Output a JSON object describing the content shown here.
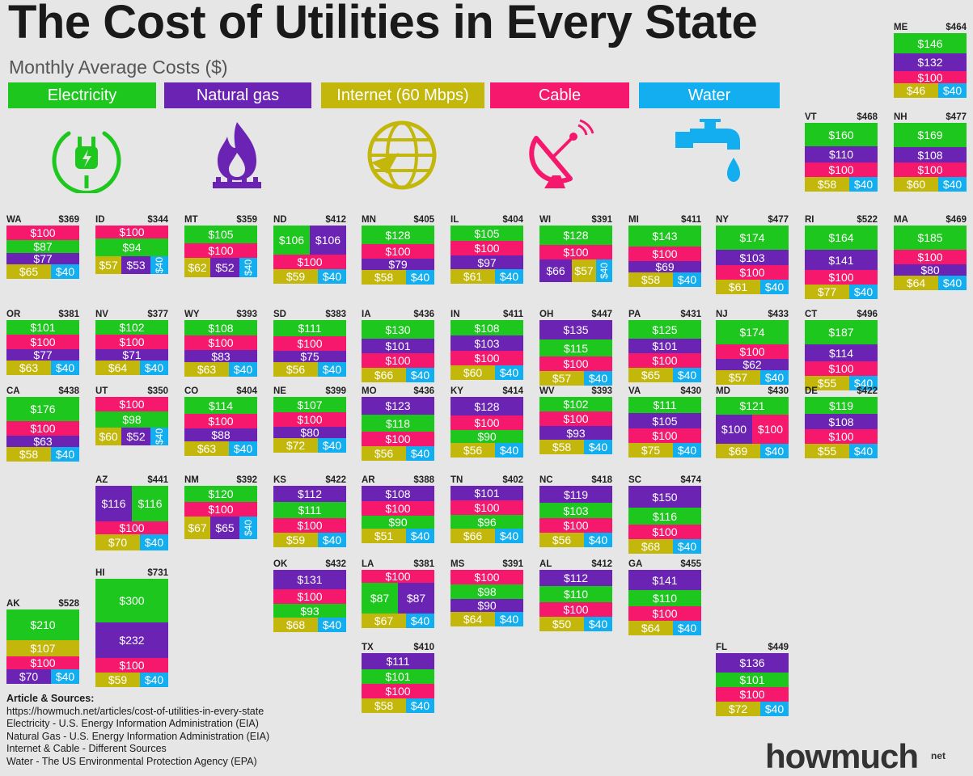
{
  "title": "The Cost of Utilities in Every State",
  "subtitle": "Monthly Average Costs  ($)",
  "colors": {
    "electricity": "#1ec71e",
    "gas": "#6a23b2",
    "internet": "#c4b70c",
    "cable": "#f5186c",
    "water": "#12aef0"
  },
  "legend": [
    {
      "key": "electricity",
      "label": "Electricity",
      "icon": "plug-icon"
    },
    {
      "key": "gas",
      "label": "Natural gas",
      "icon": "flame-icon"
    },
    {
      "key": "internet",
      "label": "Internet (60 Mbps)",
      "icon": "globe-icon"
    },
    {
      "key": "cable",
      "label": "Cable",
      "icon": "satellite-dish-icon"
    },
    {
      "key": "water",
      "label": "Water",
      "icon": "faucet-icon"
    }
  ],
  "chart_data": {
    "type": "bar",
    "units": "$",
    "states": [
      {
        "state": "ME",
        "total": "$464",
        "values": {
          "electricity": 146,
          "gas": 132,
          "cable": 100,
          "internet": 46,
          "water": 40
        }
      },
      {
        "state": "VT",
        "total": "$468",
        "values": {
          "electricity": 160,
          "gas": 110,
          "cable": 100,
          "internet": 58,
          "water": 40
        }
      },
      {
        "state": "NH",
        "total": "$477",
        "values": {
          "electricity": 169,
          "gas": 108,
          "cable": 100,
          "internet": 60,
          "water": 40
        }
      },
      {
        "state": "WA",
        "total": "$369",
        "values": {
          "cable": 100,
          "electricity": 87,
          "gas": 77,
          "internet": 65,
          "water": 40
        }
      },
      {
        "state": "ID",
        "total": "$344",
        "values": {
          "cable": 100,
          "electricity": 94,
          "internet": 57,
          "gas": 53,
          "water": 40
        }
      },
      {
        "state": "MT",
        "total": "$359",
        "values": {
          "electricity": 105,
          "cable": 100,
          "internet": 62,
          "gas": 52,
          "water": 40
        }
      },
      {
        "state": "ND",
        "total": "$412",
        "values": {
          "electricity": 106,
          "gas": 106,
          "cable": 100,
          "internet": 59,
          "water": 40
        }
      },
      {
        "state": "MN",
        "total": "$405",
        "values": {
          "electricity": 128,
          "cable": 100,
          "gas": 79,
          "internet": 58,
          "water": 40
        }
      },
      {
        "state": "IL",
        "total": "$404",
        "values": {
          "electricity": 105,
          "cable": 100,
          "gas": 97,
          "internet": 61,
          "water": 40
        }
      },
      {
        "state": "WI",
        "total": "$391",
        "values": {
          "electricity": 128,
          "cable": 100,
          "gas": 66,
          "internet": 57,
          "water": 40
        }
      },
      {
        "state": "MI",
        "total": "$411",
        "values": {
          "electricity": 143,
          "cable": 100,
          "gas": 69,
          "internet": 58,
          "water": 40
        }
      },
      {
        "state": "NY",
        "total": "$477",
        "values": {
          "electricity": 174,
          "gas": 103,
          "cable": 100,
          "internet": 61,
          "water": 40
        }
      },
      {
        "state": "RI",
        "total": "$522",
        "values": {
          "electricity": 164,
          "gas": 141,
          "cable": 100,
          "internet": 77,
          "water": 40
        }
      },
      {
        "state": "MA",
        "total": "$469",
        "values": {
          "electricity": 185,
          "cable": 100,
          "gas": 80,
          "internet": 64,
          "water": 40
        }
      },
      {
        "state": "OR",
        "total": "$381",
        "values": {
          "electricity": 101,
          "cable": 100,
          "gas": 77,
          "internet": 63,
          "water": 40
        }
      },
      {
        "state": "NV",
        "total": "$377",
        "values": {
          "electricity": 102,
          "cable": 100,
          "gas": 71,
          "internet": 64,
          "water": 40
        }
      },
      {
        "state": "WY",
        "total": "$393",
        "values": {
          "electricity": 108,
          "cable": 100,
          "gas": 83,
          "internet": 63,
          "water": 40
        }
      },
      {
        "state": "SD",
        "total": "$383",
        "values": {
          "electricity": 111,
          "cable": 100,
          "gas": 75,
          "internet": 56,
          "water": 40
        }
      },
      {
        "state": "IA",
        "total": "$436",
        "values": {
          "electricity": 130,
          "gas": 101,
          "cable": 100,
          "internet": 66,
          "water": 40
        }
      },
      {
        "state": "IN",
        "total": "$411",
        "values": {
          "electricity": 108,
          "gas": 103,
          "cable": 100,
          "internet": 60,
          "water": 40
        }
      },
      {
        "state": "OH",
        "total": "$447",
        "values": {
          "gas": 135,
          "electricity": 115,
          "cable": 100,
          "internet": 57,
          "water": 40
        }
      },
      {
        "state": "PA",
        "total": "$431",
        "values": {
          "electricity": 125,
          "gas": 101,
          "cable": 100,
          "internet": 65,
          "water": 40
        }
      },
      {
        "state": "NJ",
        "total": "$433",
        "values": {
          "electricity": 174,
          "cable": 100,
          "gas": 62,
          "internet": 57,
          "water": 40
        }
      },
      {
        "state": "CT",
        "total": "$496",
        "values": {
          "electricity": 187,
          "gas": 114,
          "cable": 100,
          "internet": 55,
          "water": 40
        }
      },
      {
        "state": "CA",
        "total": "$438",
        "values": {
          "electricity": 176,
          "cable": 100,
          "gas": 63,
          "internet": 58,
          "water": 40
        }
      },
      {
        "state": "UT",
        "total": "$350",
        "values": {
          "cable": 100,
          "electricity": 98,
          "internet": 60,
          "gas": 52,
          "water": 40
        }
      },
      {
        "state": "CO",
        "total": "$404",
        "values": {
          "electricity": 114,
          "cable": 100,
          "gas": 88,
          "internet": 63,
          "water": 40
        }
      },
      {
        "state": "NE",
        "total": "$399",
        "values": {
          "electricity": 107,
          "cable": 100,
          "gas": 80,
          "internet": 72,
          "water": 40
        }
      },
      {
        "state": "MO",
        "total": "$436",
        "values": {
          "gas": 123,
          "electricity": 118,
          "cable": 100,
          "internet": 56,
          "water": 40
        }
      },
      {
        "state": "KY",
        "total": "$414",
        "values": {
          "gas": 128,
          "cable": 100,
          "electricity": 90,
          "internet": 56,
          "water": 40
        }
      },
      {
        "state": "WV",
        "total": "$393",
        "values": {
          "electricity": 102,
          "cable": 100,
          "gas": 93,
          "internet": 58,
          "water": 40
        }
      },
      {
        "state": "VA",
        "total": "$430",
        "values": {
          "electricity": 111,
          "gas": 105,
          "cable": 100,
          "internet": 75,
          "water": 40
        }
      },
      {
        "state": "MD",
        "total": "$430",
        "values": {
          "electricity": 121,
          "gas": 100,
          "cable": 100,
          "internet": 69,
          "water": 40
        }
      },
      {
        "state": "DE",
        "total": "$422",
        "values": {
          "electricity": 119,
          "gas": 108,
          "cable": 100,
          "internet": 55,
          "water": 40
        }
      },
      {
        "state": "AZ",
        "total": "$441",
        "values": {
          "gas": 116,
          "electricity": 116,
          "cable": 100,
          "internet": 70,
          "water": 40
        }
      },
      {
        "state": "NM",
        "total": "$392",
        "values": {
          "electricity": 120,
          "cable": 100,
          "internet": 67,
          "gas": 65,
          "water": 40
        }
      },
      {
        "state": "KS",
        "total": "$422",
        "values": {
          "gas": 112,
          "electricity": 111,
          "cable": 100,
          "internet": 59,
          "water": 40
        }
      },
      {
        "state": "AR",
        "total": "$388",
        "values": {
          "gas": 108,
          "cable": 100,
          "electricity": 90,
          "internet": 51,
          "water": 40
        }
      },
      {
        "state": "TN",
        "total": "$402",
        "values": {
          "gas": 101,
          "cable": 100,
          "electricity": 96,
          "internet": 66,
          "water": 40
        }
      },
      {
        "state": "NC",
        "total": "$418",
        "values": {
          "gas": 119,
          "electricity": 103,
          "cable": 100,
          "internet": 56,
          "water": 40
        }
      },
      {
        "state": "SC",
        "total": "$474",
        "values": {
          "gas": 150,
          "electricity": 116,
          "cable": 100,
          "internet": 68,
          "water": 40
        }
      },
      {
        "state": "OK",
        "total": "$432",
        "values": {
          "gas": 131,
          "cable": 100,
          "electricity": 93,
          "internet": 68,
          "water": 40
        }
      },
      {
        "state": "LA",
        "total": "$381",
        "values": {
          "cable": 100,
          "electricity": 87,
          "gas": 87,
          "internet": 67,
          "water": 40
        }
      },
      {
        "state": "MS",
        "total": "$391",
        "values": {
          "cable": 100,
          "electricity": 98,
          "gas": 90,
          "internet": 64,
          "water": 40
        }
      },
      {
        "state": "AL",
        "total": "$412",
        "values": {
          "gas": 112,
          "electricity": 110,
          "cable": 100,
          "internet": 50,
          "water": 40
        }
      },
      {
        "state": "GA",
        "total": "$455",
        "values": {
          "gas": 141,
          "electricity": 110,
          "cable": 100,
          "internet": 64,
          "water": 40
        }
      },
      {
        "state": "AK",
        "total": "$528",
        "values": {
          "electricity": 210,
          "internet": 107,
          "cable": 100,
          "gas": 70,
          "water": 40
        }
      },
      {
        "state": "HI",
        "total": "$731",
        "values": {
          "electricity": 300,
          "gas": 232,
          "cable": 100,
          "internet": 59,
          "water": 40
        }
      },
      {
        "state": "TX",
        "total": "$410",
        "values": {
          "gas": 111,
          "electricity": 101,
          "cable": 100,
          "internet": 58,
          "water": 40
        }
      },
      {
        "state": "FL",
        "total": "$449",
        "values": {
          "gas": 136,
          "electricity": 101,
          "cable": 100,
          "internet": 72,
          "water": 40
        }
      }
    ]
  },
  "sources": {
    "title": "Article & Sources:",
    "lines": [
      "https://howmuch.net/articles/cost-of-utilities-in-every-state",
      "Electricity - U.S. Energy Information Administration (EIA)",
      "Natural Gas - U.S. Energy Information Administration (EIA)",
      "Internet & Cable - Different Sources",
      "Water - The US Environmental Protection Agency (EPA)"
    ]
  },
  "brand": {
    "name": "howmuch",
    "suffix": "net"
  }
}
